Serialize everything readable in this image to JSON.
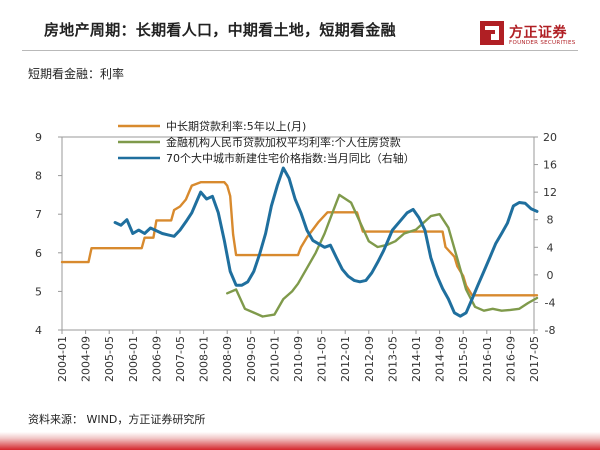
{
  "header": {
    "title": "房地产周期：长期看人口，中期看土地，短期看金融",
    "subtitle": "短期看金融：利率"
  },
  "logo": {
    "icon": "founder-securities-logo-icon",
    "name": "方正证券",
    "sub": "FOUNDER SECURITIES",
    "color": "#b01f24"
  },
  "footer": {
    "source": "资料来源： WIND，方正证券研究所"
  },
  "chart_data": {
    "type": "line",
    "x_ticks": [
      "2004-01",
      "2004-09",
      "2005-05",
      "2006-01",
      "2006-09",
      "2007-05",
      "2008-01",
      "2008-09",
      "2009-05",
      "2010-01",
      "2010-09",
      "2011-05",
      "2012-01",
      "2012-09",
      "2013-05",
      "2014-01",
      "2014-09",
      "2015-05",
      "2016-01",
      "2016-09",
      "2017-05"
    ],
    "y_left": {
      "min": 4,
      "max": 9,
      "ticks": [
        4,
        5,
        6,
        7,
        8,
        9
      ]
    },
    "y_right": {
      "min": -8,
      "max": 20,
      "ticks": [
        -8,
        -4,
        0,
        4,
        8,
        12,
        16,
        20
      ]
    },
    "grid": false,
    "legend_position": "top",
    "series": [
      {
        "name": "中长期贷款利率:5年以上(月)",
        "axis": "left",
        "color": "#d88a2e",
        "points": [
          [
            "2004-01",
            5.76
          ],
          [
            "2004-10",
            5.76
          ],
          [
            "2004-11",
            6.12
          ],
          [
            "2006-04",
            6.12
          ],
          [
            "2006-05",
            6.39
          ],
          [
            "2006-08",
            6.39
          ],
          [
            "2006-09",
            6.84
          ],
          [
            "2007-02",
            6.84
          ],
          [
            "2007-03",
            7.11
          ],
          [
            "2007-05",
            7.2
          ],
          [
            "2007-07",
            7.38
          ],
          [
            "2007-08",
            7.56
          ],
          [
            "2007-09",
            7.74
          ],
          [
            "2007-12",
            7.83
          ],
          [
            "2008-08",
            7.83
          ],
          [
            "2008-09",
            7.74
          ],
          [
            "2008-10",
            7.47
          ],
          [
            "2008-11",
            6.48
          ],
          [
            "2008-12",
            5.94
          ],
          [
            "2010-09",
            5.94
          ],
          [
            "2010-10",
            6.14
          ],
          [
            "2010-12",
            6.4
          ],
          [
            "2011-02",
            6.6
          ],
          [
            "2011-04",
            6.8
          ],
          [
            "2011-07",
            7.05
          ],
          [
            "2012-05",
            7.05
          ],
          [
            "2012-06",
            6.8
          ],
          [
            "2012-07",
            6.55
          ],
          [
            "2014-10",
            6.55
          ],
          [
            "2014-11",
            6.15
          ],
          [
            "2015-02",
            5.9
          ],
          [
            "2015-03",
            5.65
          ],
          [
            "2015-05",
            5.4
          ],
          [
            "2015-06",
            5.15
          ],
          [
            "2015-08",
            4.9
          ],
          [
            "2017-06",
            4.9
          ]
        ]
      },
      {
        "name": "金融机构人民币贷款加权平均利率:个人住房贷款",
        "axis": "left",
        "color": "#7f9a4b",
        "points": [
          [
            "2008-09",
            4.95
          ],
          [
            "2008-12",
            5.05
          ],
          [
            "2009-03",
            4.55
          ],
          [
            "2009-06",
            4.45
          ],
          [
            "2009-09",
            4.35
          ],
          [
            "2010-01",
            4.4
          ],
          [
            "2010-04",
            4.8
          ],
          [
            "2010-07",
            5.0
          ],
          [
            "2010-09",
            5.2
          ],
          [
            "2010-12",
            5.6
          ],
          [
            "2011-03",
            6.0
          ],
          [
            "2011-06",
            6.5
          ],
          [
            "2011-09",
            7.1
          ],
          [
            "2011-11",
            7.5
          ],
          [
            "2012-03",
            7.3
          ],
          [
            "2012-06",
            6.8
          ],
          [
            "2012-09",
            6.3
          ],
          [
            "2012-12",
            6.15
          ],
          [
            "2013-03",
            6.2
          ],
          [
            "2013-06",
            6.3
          ],
          [
            "2013-09",
            6.5
          ],
          [
            "2014-01",
            6.6
          ],
          [
            "2014-06",
            6.95
          ],
          [
            "2014-09",
            7.0
          ],
          [
            "2014-12",
            6.65
          ],
          [
            "2015-03",
            5.85
          ],
          [
            "2015-06",
            5.05
          ],
          [
            "2015-09",
            4.6
          ],
          [
            "2015-12",
            4.5
          ],
          [
            "2016-03",
            4.55
          ],
          [
            "2016-06",
            4.5
          ],
          [
            "2016-09",
            4.52
          ],
          [
            "2016-12",
            4.55
          ],
          [
            "2017-03",
            4.7
          ],
          [
            "2017-06",
            4.83
          ]
        ]
      },
      {
        "name": "70个大中城市新建住宅价格指数:当月同比（右轴）",
        "axis": "right",
        "color": "#1f6f9e",
        "points": [
          [
            "2005-07",
            7.6
          ],
          [
            "2005-09",
            7.2
          ],
          [
            "2005-11",
            8.0
          ],
          [
            "2006-01",
            6.0
          ],
          [
            "2006-03",
            6.5
          ],
          [
            "2006-05",
            6.0
          ],
          [
            "2006-07",
            6.8
          ],
          [
            "2006-09",
            6.4
          ],
          [
            "2006-11",
            6.0
          ],
          [
            "2007-01",
            5.8
          ],
          [
            "2007-03",
            5.6
          ],
          [
            "2007-05",
            6.5
          ],
          [
            "2007-07",
            7.7
          ],
          [
            "2007-09",
            9.0
          ],
          [
            "2007-11",
            11.0
          ],
          [
            "2007-12",
            12.0
          ],
          [
            "2008-02",
            11.0
          ],
          [
            "2008-04",
            11.4
          ],
          [
            "2008-06",
            9.0
          ],
          [
            "2008-08",
            5.0
          ],
          [
            "2008-10",
            0.5
          ],
          [
            "2008-12",
            -1.5
          ],
          [
            "2009-02",
            -1.5
          ],
          [
            "2009-04",
            -1.0
          ],
          [
            "2009-06",
            0.5
          ],
          [
            "2009-08",
            3.0
          ],
          [
            "2009-10",
            6.0
          ],
          [
            "2009-12",
            10.0
          ],
          [
            "2010-02",
            13.0
          ],
          [
            "2010-04",
            15.5
          ],
          [
            "2010-06",
            14.0
          ],
          [
            "2010-08",
            11.0
          ],
          [
            "2010-10",
            9.0
          ],
          [
            "2010-12",
            6.5
          ],
          [
            "2011-02",
            5.0
          ],
          [
            "2011-04",
            4.5
          ],
          [
            "2011-06",
            4.0
          ],
          [
            "2011-08",
            4.3
          ],
          [
            "2011-10",
            2.5
          ],
          [
            "2011-12",
            0.8
          ],
          [
            "2012-02",
            -0.2
          ],
          [
            "2012-04",
            -0.8
          ],
          [
            "2012-06",
            -1.0
          ],
          [
            "2012-08",
            -0.8
          ],
          [
            "2012-10",
            0.3
          ],
          [
            "2012-12",
            1.8
          ],
          [
            "2013-02",
            3.5
          ],
          [
            "2013-05",
            6.5
          ],
          [
            "2013-08",
            8.0
          ],
          [
            "2013-10",
            9.0
          ],
          [
            "2013-12",
            9.5
          ],
          [
            "2014-02",
            8.3
          ],
          [
            "2014-04",
            6.5
          ],
          [
            "2014-06",
            2.5
          ],
          [
            "2014-08",
            0.0
          ],
          [
            "2014-10",
            -2.0
          ],
          [
            "2014-12",
            -3.5
          ],
          [
            "2015-02",
            -5.5
          ],
          [
            "2015-04",
            -6.0
          ],
          [
            "2015-06",
            -5.5
          ],
          [
            "2015-08",
            -3.5
          ],
          [
            "2015-10",
            -1.5
          ],
          [
            "2015-12",
            0.5
          ],
          [
            "2016-02",
            2.5
          ],
          [
            "2016-04",
            4.5
          ],
          [
            "2016-06",
            6.0
          ],
          [
            "2016-08",
            7.5
          ],
          [
            "2016-10",
            10.0
          ],
          [
            "2016-12",
            10.5
          ],
          [
            "2017-02",
            10.4
          ],
          [
            "2017-04",
            9.6
          ],
          [
            "2017-06",
            9.2
          ]
        ]
      }
    ]
  }
}
